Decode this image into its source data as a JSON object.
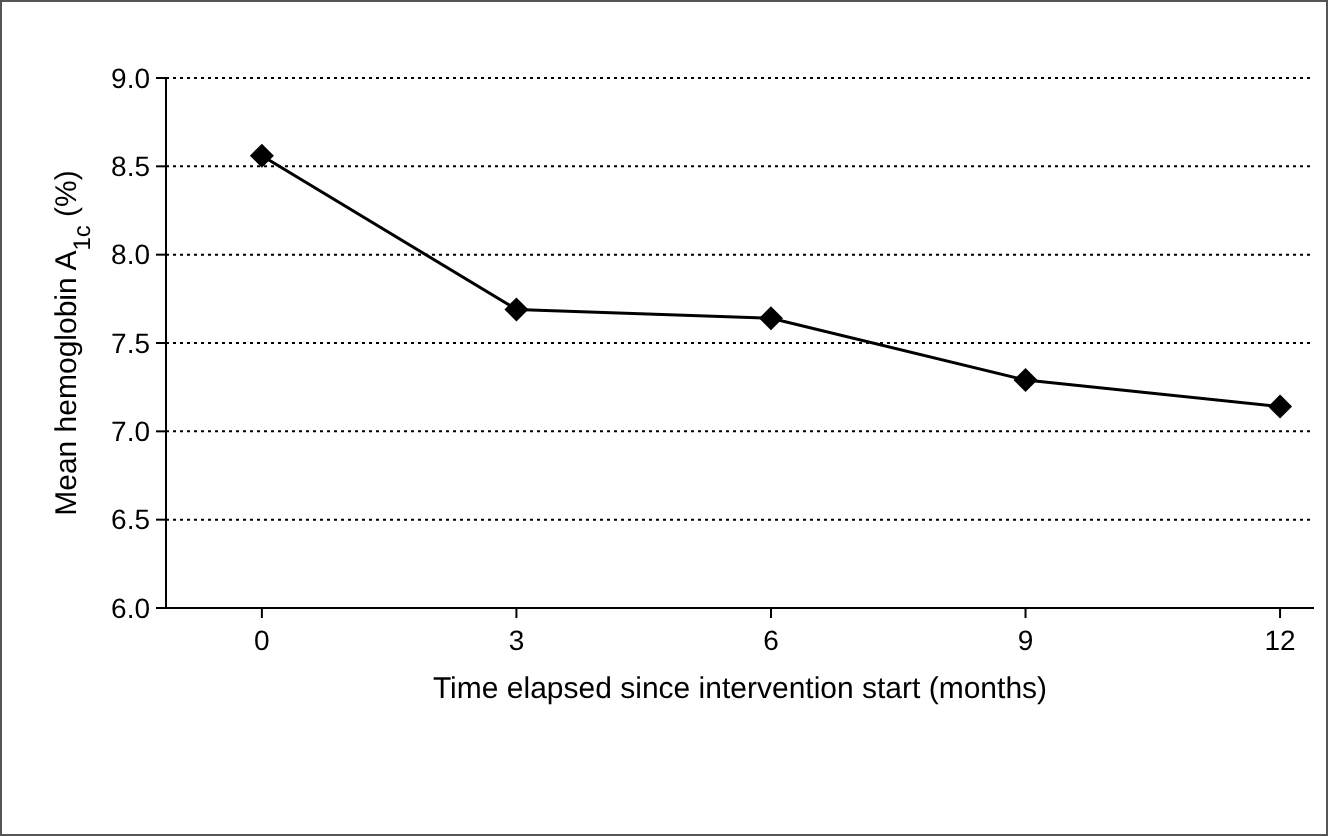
{
  "chart_data": {
    "type": "line",
    "xlabel": "Time elapsed since intervention start (months)",
    "ylabel": "Mean hemoglobin A$_{1c}$ (%)",
    "x": [
      0,
      3,
      6,
      9,
      12
    ],
    "series": [
      {
        "color": "#000000",
        "values": [
          8.56,
          7.69,
          7.64,
          7.29,
          7.14
        ]
      }
    ],
    "xlim": [
      -1.13,
      12.4
    ],
    "xticks": [
      0,
      3,
      6,
      9,
      12
    ],
    "ylim": [
      6,
      9
    ],
    "yticks": [
      {
        "value": 6,
        "label": "6.0"
      },
      {
        "value": 6.5,
        "label": "6.5"
      },
      {
        "value": 7,
        "label": "7.0"
      },
      {
        "value": 7.5,
        "label": "7.5"
      },
      {
        "value": 8,
        "label": "8.0"
      },
      {
        "value": 8.5,
        "label": "8.5"
      },
      {
        "value": 9,
        "label": "9.0"
      }
    ],
    "grid": "y",
    "marker": "diamond",
    "line_style": "solid"
  }
}
